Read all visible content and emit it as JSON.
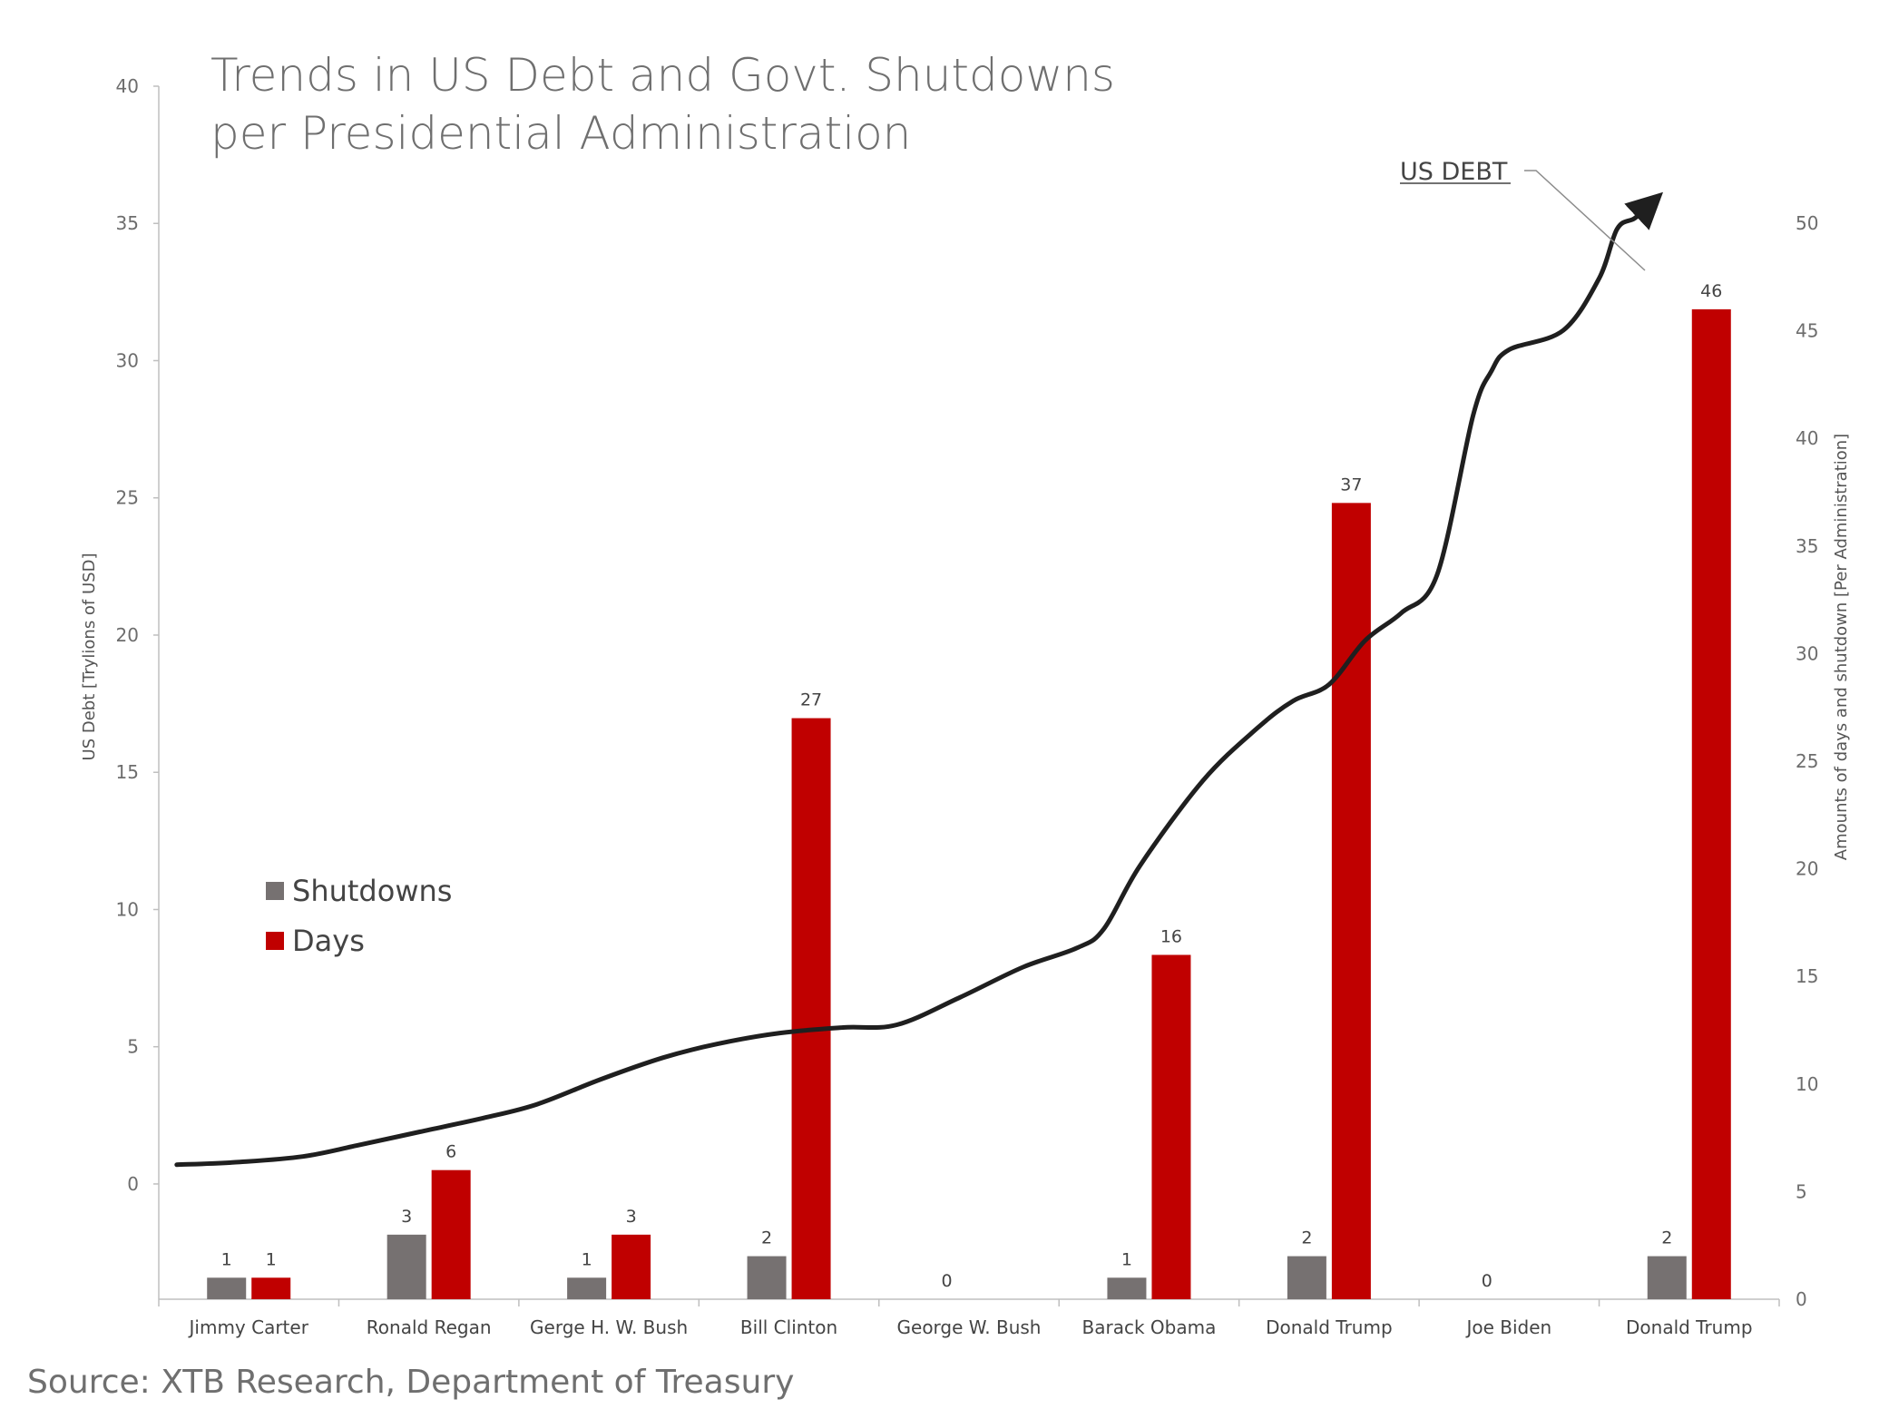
{
  "chart_data": {
    "type": "bar",
    "title": "Trends in US Debt and Govt. Shutdowns",
    "subtitle": "per Presidential Administration",
    "source": "Source: XTB Research, Department of Treasury",
    "categories": [
      "Jimmy Carter",
      "Ronald Regan",
      "Gerge H. W. Bush",
      "Bill Clinton",
      "George W. Bush",
      "Barack Obama",
      "Donald Trump",
      "Joe Biden",
      "Donald Trump"
    ],
    "series": [
      {
        "name": "Shutdowns",
        "color": "#767171",
        "values": [
          1,
          3,
          1,
          2,
          0,
          1,
          2,
          0,
          2
        ]
      },
      {
        "name": "Days",
        "color": "#c00000",
        "values": [
          1,
          6,
          3,
          27,
          0,
          16,
          37,
          0,
          46
        ]
      }
    ],
    "bar_value_labels": {
      "shutdowns": [
        "1",
        "3",
        "1",
        "2",
        "0",
        "1",
        "2",
        "0",
        "2"
      ],
      "days": [
        "1",
        "6",
        "3",
        "27",
        "",
        "16",
        "37",
        "",
        "46"
      ]
    },
    "line": {
      "name": "US DEBT",
      "color": "#1f1f1f",
      "x": [
        0,
        0.35,
        0.7,
        1.0,
        1.35,
        1.7,
        2.0,
        2.35,
        2.7,
        3.0,
        3.35,
        3.7,
        4.0,
        4.35,
        4.7,
        5.0,
        5.15,
        5.35,
        5.7,
        6.0,
        6.2,
        6.4,
        6.6,
        6.8,
        7.0,
        7.2,
        7.3,
        7.4,
        7.7,
        7.9,
        8.0,
        8.1,
        8.2
      ],
      "y": [
        0.7,
        0.8,
        1.0,
        1.4,
        1.9,
        2.4,
        2.9,
        3.8,
        4.6,
        5.1,
        5.5,
        5.7,
        5.8,
        6.8,
        7.9,
        8.6,
        9.3,
        11.6,
        14.7,
        16.6,
        17.6,
        18.2,
        19.8,
        20.8,
        22.2,
        28.0,
        29.6,
        30.4,
        31.1,
        33.0,
        34.8,
        35.2,
        35.8
      ]
    },
    "y_left": {
      "label": "US Debt [Trylions of USD]",
      "min": -4.2,
      "max": 40,
      "ticks": [
        0,
        5,
        10,
        15,
        20,
        25,
        30,
        35,
        40
      ]
    },
    "y_right": {
      "label": "Amounts of days and shutdown [Per Administration]",
      "min": 0,
      "max": 50,
      "ticks": [
        0,
        5,
        10,
        15,
        20,
        25,
        30,
        35,
        40,
        45,
        50
      ]
    },
    "legend": {
      "position": "left-middle",
      "entries": [
        "Shutdowns",
        "Days"
      ]
    },
    "annotation": "US DEBT",
    "grid": false
  }
}
